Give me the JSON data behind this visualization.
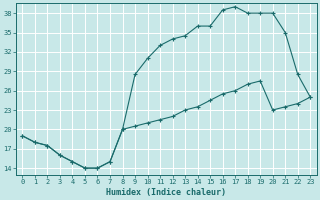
{
  "xlabel": "Humidex (Indice chaleur)",
  "bg_color": "#c8e8e8",
  "grid_color": "#ffffff",
  "line_color": "#1a6b6b",
  "xlim": [
    -0.5,
    23.5
  ],
  "ylim": [
    13,
    39.5
  ],
  "yticks": [
    14,
    17,
    20,
    23,
    26,
    29,
    32,
    35,
    38
  ],
  "xticks": [
    0,
    1,
    2,
    3,
    4,
    5,
    6,
    7,
    8,
    9,
    10,
    11,
    12,
    13,
    14,
    15,
    16,
    17,
    18,
    19,
    20,
    21,
    22,
    23
  ],
  "line1_x": [
    0,
    1,
    2,
    3,
    4,
    5,
    6,
    7,
    8,
    9,
    10,
    11,
    12,
    13,
    14,
    15,
    16,
    17,
    18,
    19,
    20,
    21,
    22,
    23
  ],
  "line1_y": [
    19,
    18,
    17.5,
    16,
    15,
    14,
    14,
    15,
    20,
    28.5,
    31,
    33,
    34,
    34.5,
    36,
    36,
    38.5,
    39,
    38,
    38,
    38,
    35,
    28.5,
    25
  ],
  "line2_x": [
    0,
    1,
    2,
    3,
    4,
    5,
    6,
    7,
    8,
    9,
    10,
    11,
    12,
    13,
    14,
    15,
    16,
    17,
    18,
    19,
    20,
    21,
    22,
    23
  ],
  "line2_y": [
    19,
    18,
    17.5,
    16,
    15,
    14,
    14,
    15,
    20,
    20.5,
    21,
    21.5,
    22,
    23,
    23.5,
    24.5,
    25.5,
    26,
    27,
    27.5,
    23,
    23.5,
    24,
    25
  ],
  "tick_fontsize": 5,
  "xlabel_fontsize": 6,
  "figsize": [
    3.2,
    2.0
  ],
  "dpi": 100
}
